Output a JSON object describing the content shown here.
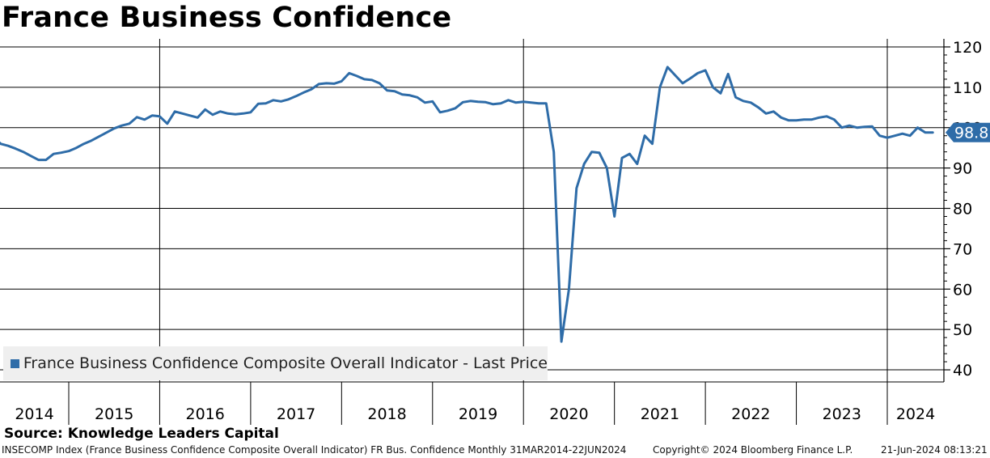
{
  "chart_data": {
    "type": "line",
    "title": "France Business Confidence",
    "xlabel": "",
    "ylabel": "",
    "ylim": [
      37,
      122
    ],
    "yticks": [
      40,
      50,
      60,
      70,
      80,
      90,
      100,
      110,
      120
    ],
    "ytick_labels": [
      "40",
      "50",
      "60",
      "70",
      "80",
      "90",
      "100",
      "110",
      "120"
    ],
    "x_range": [
      "2014-03",
      "2024-06"
    ],
    "year_labels": [
      "2014",
      "2015",
      "2016",
      "2017",
      "2018",
      "2019",
      "2020",
      "2021",
      "2022",
      "2023",
      "2024"
    ],
    "grid": true,
    "series": [
      {
        "name": "France Business Confidence Composite Overall Indicator - Last Price",
        "color": "#2e6ca8",
        "last_value_label": "98.8",
        "start": "2014-03",
        "frequency": "monthly",
        "values": [
          96.2,
          96.0,
          95.5,
          94.8,
          94.0,
          93.0,
          92.0,
          92.0,
          93.5,
          93.8,
          94.2,
          95.0,
          96.0,
          96.8,
          97.8,
          98.8,
          99.8,
          100.5,
          101.0,
          102.6,
          102.0,
          103.0,
          102.8,
          101.0,
          104.0,
          103.5,
          103.0,
          102.5,
          104.5,
          103.2,
          104.0,
          103.5,
          103.3,
          103.5,
          103.8,
          105.9,
          106.0,
          106.8,
          106.5,
          107.0,
          107.8,
          108.7,
          109.5,
          110.8,
          111.0,
          110.9,
          111.5,
          113.5,
          112.8,
          112.0,
          111.8,
          111.0,
          109.2,
          109.0,
          108.2,
          108.0,
          107.5,
          106.2,
          106.5,
          103.8,
          104.2,
          104.8,
          106.3,
          106.6,
          106.4,
          106.3,
          105.8,
          106.0,
          106.8,
          106.2,
          106.4,
          106.2,
          106.0,
          106.0,
          94.0,
          47.0,
          60.0,
          85.0,
          91.0,
          94.0,
          93.8,
          90.0,
          78.0,
          92.5,
          93.5,
          91.0,
          98.0,
          96.0,
          110.0,
          115.0,
          113.0,
          111.0,
          112.2,
          113.5,
          114.2,
          110.0,
          108.5,
          113.3,
          107.5,
          106.6,
          106.2,
          105.0,
          103.5,
          104.0,
          102.5,
          101.8,
          101.8,
          102.0,
          102.0,
          102.5,
          102.8,
          102.0,
          100.0,
          100.5,
          100.0,
          100.2,
          100.3,
          98.0,
          97.5,
          98.0,
          98.5,
          98.0,
          100.0,
          98.8,
          98.8
        ]
      }
    ]
  },
  "legend": {
    "label": "France Business Confidence Composite Overall Indicator - Last Price",
    "color": "#2e6ca8"
  },
  "source": "Source: Knowledge Leaders Capital",
  "footer": {
    "description": "INSECOMP Index (France Business Confidence Composite Overall Indicator) FR Bus. Confidence  Monthly 31MAR2014-22JUN2024",
    "copyright": "Copyright© 2024 Bloomberg Finance L.P.",
    "timestamp": "21-Jun-2024 08:13:21"
  }
}
